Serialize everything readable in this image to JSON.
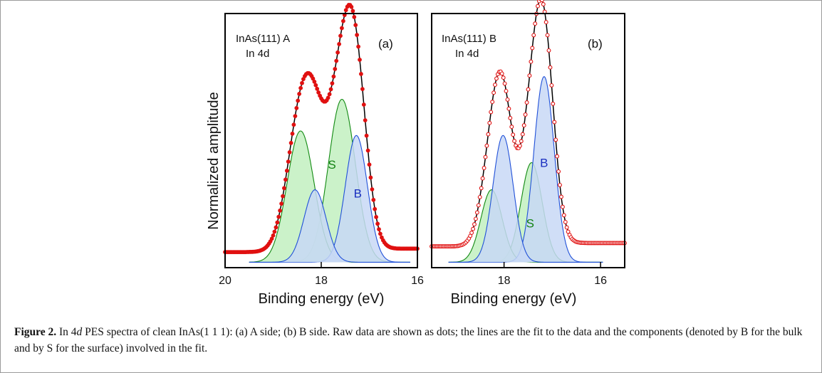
{
  "colors": {
    "data_points": "#e01010",
    "fit_line": "#000000",
    "bulk_fill": "#c8d8f6",
    "bulk_line": "#2050d8",
    "surface_fill": "#c2f0c0",
    "surface_line": "#128a12",
    "bulk_label": "#1a2fc0",
    "surface_label": "#118211"
  },
  "chart_data": [
    {
      "type": "line",
      "panel_label": "(a)",
      "sample_label_1": "InAs(111) A",
      "sample_label_2": "In 4d",
      "xlabel": "Binding energy (eV)",
      "ylabel": "Normalized amplitude",
      "xlim": [
        20,
        16
      ],
      "ylim": [
        0,
        1.0
      ],
      "x_ticks": [
        "20",
        "18",
        "16"
      ],
      "x_tick_values": [
        20,
        18,
        16
      ],
      "marker": "filled",
      "series": [
        {
          "name": "B",
          "label_text": "B",
          "center": 17.27,
          "height": 0.56,
          "width": 0.23
        },
        {
          "name": "",
          "center": 18.13,
          "height": 0.32,
          "width": 0.23
        },
        {
          "name": "S",
          "label_text": "S",
          "center": 17.57,
          "height": 0.72,
          "width": 0.28
        },
        {
          "name": "",
          "center": 18.43,
          "height": 0.58,
          "width": 0.28
        }
      ],
      "background": {
        "low": 0.05,
        "high": 0.065,
        "center": 17.7,
        "width": 0.7
      },
      "component_range": [
        19.5,
        16.15
      ]
    },
    {
      "type": "line",
      "panel_label": "(b)",
      "sample_label_1": "InAs(111) B",
      "sample_label_2": "In 4d",
      "xlabel": "Binding energy (eV)",
      "ylabel": "",
      "xlim": [
        19.5,
        15.5
      ],
      "ylim": [
        0,
        1.0
      ],
      "x_ticks": [
        "18",
        "16"
      ],
      "x_tick_values": [
        18,
        16
      ],
      "marker": "open",
      "series": [
        {
          "name": "B",
          "label_text": "B",
          "center": 17.17,
          "height": 0.82,
          "width": 0.21
        },
        {
          "name": "",
          "center": 18.02,
          "height": 0.56,
          "width": 0.21
        },
        {
          "name": "S",
          "label_text": "S",
          "center": 17.43,
          "height": 0.44,
          "width": 0.22
        },
        {
          "name": "",
          "center": 18.26,
          "height": 0.32,
          "width": 0.22
        }
      ],
      "background": {
        "low": 0.075,
        "high": 0.09,
        "center": 17.6,
        "width": 0.6
      },
      "component_range": [
        19.15,
        15.95
      ]
    }
  ],
  "caption": {
    "bold": "Figure 2.",
    "text_1": " In  4",
    "italic": "d",
    "text_2": " PES spectra of clean InAs(1 1 1): (a)  A  side; (b)  B  side. Raw data are shown as dots; the lines are the fit to the data and the components (denoted by B for the bulk and by S for the surface) involved in the fit."
  }
}
